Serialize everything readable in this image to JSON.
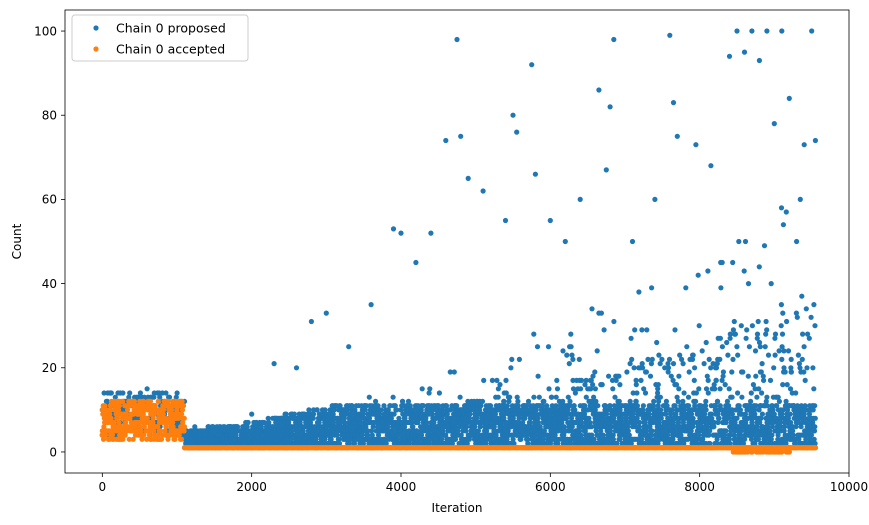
{
  "chart_data": {
    "type": "scatter",
    "title": "",
    "xlabel": "Iteration",
    "ylabel": "Count",
    "xlim": [
      -500,
      10000
    ],
    "ylim": [
      -5,
      105
    ],
    "x_ticks": [
      0,
      2000,
      4000,
      6000,
      8000,
      10000
    ],
    "y_ticks": [
      0,
      20,
      40,
      60,
      80,
      100
    ],
    "x_tick_labels": [
      "0",
      "2000",
      "4000",
      "6000",
      "8000",
      "10000"
    ],
    "y_tick_labels": [
      "0",
      "20",
      "40",
      "60",
      "80",
      "100"
    ],
    "grid": false,
    "legend_position": "top-left",
    "series": [
      {
        "name": "Chain 0 proposed",
        "color": "#1f77b4",
        "marker": "circle",
        "n_points_approx": 9550,
        "description_of_distribution": "burn-in 0-1100 values 3-15; after 1100 mostly 1-10 with upper envelope rising from ~5 to ~100 near 8500-9500",
        "sample_points": [
          [
            0,
            10
          ],
          [
            300,
            12
          ],
          [
            600,
            15
          ],
          [
            900,
            13
          ],
          [
            1100,
            12
          ],
          [
            1200,
            2
          ],
          [
            1500,
            5
          ],
          [
            2000,
            9
          ],
          [
            2300,
            21
          ],
          [
            2600,
            20
          ],
          [
            2800,
            31
          ],
          [
            3000,
            33
          ],
          [
            3300,
            25
          ],
          [
            3600,
            35
          ],
          [
            3900,
            53
          ],
          [
            4000,
            52
          ],
          [
            4200,
            45
          ],
          [
            4400,
            52
          ],
          [
            4600,
            74
          ],
          [
            4750,
            98
          ],
          [
            4800,
            75
          ],
          [
            4900,
            65
          ],
          [
            5100,
            62
          ],
          [
            5400,
            55
          ],
          [
            5500,
            80
          ],
          [
            5550,
            76
          ],
          [
            5750,
            92
          ],
          [
            5800,
            66
          ],
          [
            6000,
            55
          ],
          [
            6200,
            50
          ],
          [
            6400,
            60
          ],
          [
            6650,
            86
          ],
          [
            6750,
            67
          ],
          [
            6800,
            82
          ],
          [
            6850,
            98
          ],
          [
            7100,
            50
          ],
          [
            7400,
            60
          ],
          [
            7600,
            99
          ],
          [
            7650,
            83
          ],
          [
            7700,
            75
          ],
          [
            7950,
            73
          ],
          [
            8150,
            68
          ],
          [
            8400,
            94
          ],
          [
            8500,
            100
          ],
          [
            8600,
            95
          ],
          [
            8700,
            100
          ],
          [
            8800,
            93
          ],
          [
            8900,
            100
          ],
          [
            9000,
            78
          ],
          [
            9100,
            100
          ],
          [
            9200,
            84
          ],
          [
            9400,
            73
          ],
          [
            9500,
            100
          ],
          [
            9550,
            74
          ]
        ]
      },
      {
        "name": "Chain 0 accepted",
        "color": "#ff7f0e",
        "marker": "circle",
        "n_points_approx": 9550,
        "description_of_distribution": "burn-in 0-1100 values 3-13; after 1100 constant at 1; near 8450-9200 some values at 0",
        "sample_points": [
          [
            0,
            5
          ],
          [
            200,
            9
          ],
          [
            500,
            12
          ],
          [
            800,
            8
          ],
          [
            1100,
            6
          ],
          [
            1150,
            1
          ],
          [
            3000,
            1
          ],
          [
            5000,
            1
          ],
          [
            7000,
            1
          ],
          [
            8400,
            1
          ],
          [
            8500,
            0
          ],
          [
            8700,
            0
          ],
          [
            9000,
            0
          ],
          [
            9200,
            0
          ],
          [
            9400,
            1
          ],
          [
            9550,
            1
          ]
        ]
      }
    ]
  }
}
